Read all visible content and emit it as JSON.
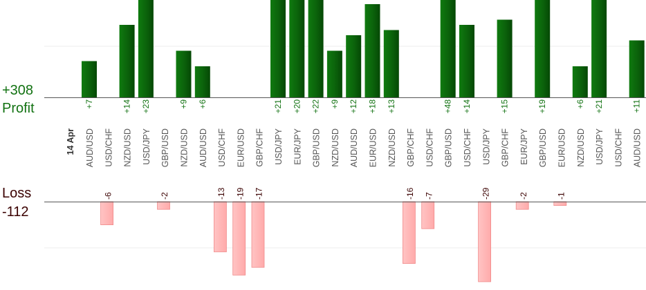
{
  "summary": {
    "profit_total": "+308",
    "profit_label": "Profit",
    "loss_label": "Loss",
    "loss_total": "-112"
  },
  "colors": {
    "profit_bar": "#0f6d0f",
    "profit_text": "#127212",
    "loss_bar": "#ffb8b8",
    "loss_text": "#3a0000",
    "baseline": "#555555",
    "grid": "#eeeeee"
  },
  "chart_data": {
    "type": "bar",
    "date_label": "14 Apr",
    "categories": [
      "AUD/USD",
      "USD/CHF",
      "NZD/USD",
      "USD/JPY",
      "GBP/USD",
      "NZD/USD",
      "AUD/USD",
      "USD/CHF",
      "EUR/USD",
      "GBP/CHF",
      "USD/JPY",
      "EUR/JPY",
      "GBP/USD",
      "NZD/USD",
      "AUD/USD",
      "EUR/USD",
      "NZD/USD",
      "GBP/CHF",
      "USD/CHF",
      "GBP/USD",
      "USD/CHF",
      "USD/JPY",
      "GBP/CHF",
      "EUR/JPY",
      "GBP/USD",
      "EUR/USD",
      "NZD/USD",
      "USD/JPY",
      "USD/CHF",
      "AUD/USD"
    ],
    "series": [
      {
        "values": [
          7,
          null,
          14,
          23,
          null,
          9,
          6,
          null,
          null,
          null,
          21,
          20,
          22,
          9,
          12,
          18,
          13,
          null,
          null,
          48,
          14,
          null,
          15,
          null,
          19,
          null,
          6,
          21,
          null,
          11
        ],
        "labels": [
          "+7",
          "",
          "+14",
          "+23",
          "",
          "+9",
          "+6",
          "",
          "",
          "",
          "+21",
          "+20",
          "+22",
          "+9",
          "+12",
          "+18",
          "+13",
          "",
          "",
          "+48",
          "+14",
          "",
          "+15",
          "",
          "+19",
          "",
          "+6",
          "+21",
          "",
          "+11"
        ]
      },
      {
        "values": [
          null,
          -6,
          null,
          null,
          -2,
          null,
          null,
          -13,
          -19,
          -17,
          null,
          null,
          null,
          null,
          null,
          null,
          null,
          -16,
          -7,
          null,
          null,
          -29,
          null,
          -2,
          null,
          -1,
          null,
          null,
          null,
          null
        ],
        "labels": [
          "",
          "-6",
          "",
          "",
          "-2",
          "",
          "",
          "-13",
          "-19",
          "-17",
          "",
          "",
          "",
          "",
          "",
          "",
          "",
          "-16",
          "-7",
          "",
          "",
          "-29",
          "",
          "-2",
          "",
          "-1",
          "",
          "",
          "",
          ""
        ]
      }
    ]
  }
}
